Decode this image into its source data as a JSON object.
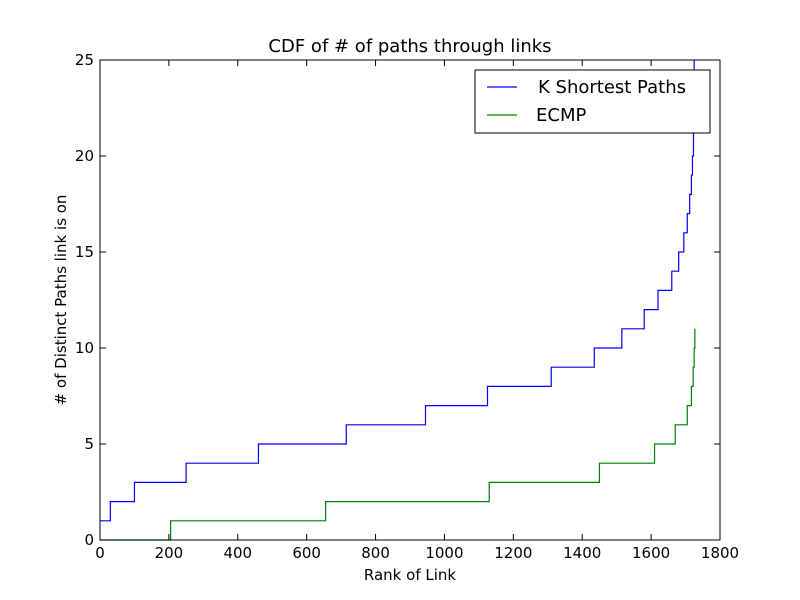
{
  "chart_data": {
    "type": "line",
    "title": "CDF of # of paths through links",
    "xlabel": "Rank of Link",
    "ylabel": "# of Distinct Paths link is on",
    "xlim": [
      0,
      1800
    ],
    "ylim": [
      0,
      25
    ],
    "xticks": [
      "0",
      "200",
      "400",
      "600",
      "800",
      "1000",
      "1200",
      "1400",
      "1600",
      "1800"
    ],
    "yticks": [
      "0",
      "5",
      "10",
      "15",
      "20",
      "25"
    ],
    "grid": false,
    "legend_position": "top-right",
    "series": [
      {
        "name": "K Shortest Paths",
        "color": "#0000ff",
        "step": true,
        "x": [
          0,
          30,
          100,
          250,
          460,
          715,
          945,
          1125,
          1310,
          1435,
          1515,
          1580,
          1620,
          1660,
          1680,
          1695,
          1705,
          1712,
          1717,
          1720,
          1723,
          1725
        ],
        "y": [
          1,
          2,
          3,
          4,
          5,
          6,
          7,
          8,
          9,
          10,
          11,
          12,
          13,
          14,
          15,
          16,
          17,
          18,
          19,
          20,
          22,
          25
        ]
      },
      {
        "name": "ECMP",
        "color": "#008000",
        "step": true,
        "x": [
          0,
          205,
          655,
          1130,
          1450,
          1610,
          1670,
          1705,
          1717,
          1722,
          1725,
          1727
        ],
        "y": [
          0,
          1,
          2,
          3,
          4,
          5,
          6,
          7,
          8,
          9,
          10,
          11
        ]
      }
    ]
  }
}
